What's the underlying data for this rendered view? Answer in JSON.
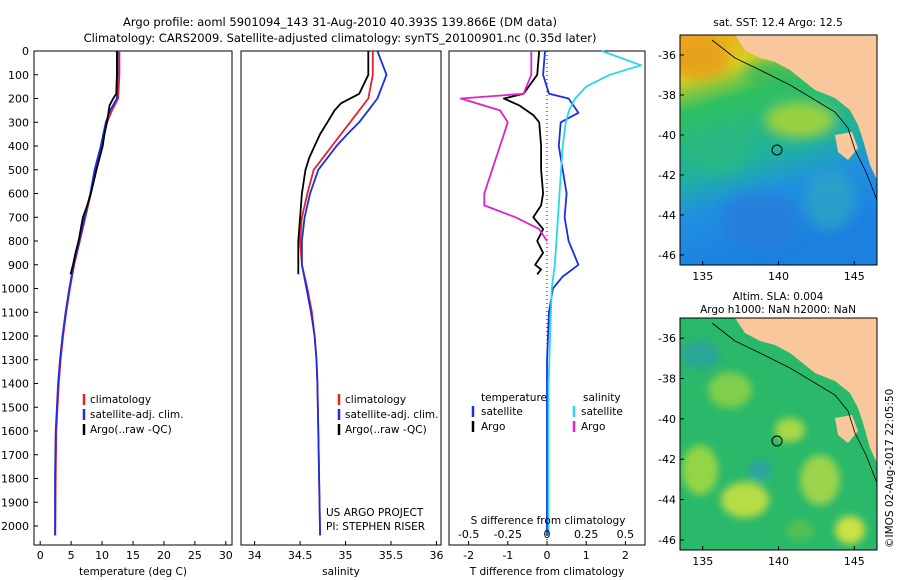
{
  "header": {
    "title1": "Argo profile: aoml 5901094_143 31-Aug-2010 40.393S 139.866E (DM data)",
    "title2": "Climatology: CARS2009. Satellite-adjusted climatology: synTS_20100901.nc (0.35d later)"
  },
  "footer": {
    "imos_stamp": "©IMOS 02-Aug-2017 22:05:50"
  },
  "colors": {
    "climatology": "#e8202a",
    "satellite": "#1c2fe0",
    "argo": "#000000",
    "sat_salinity": "#26d8e8",
    "argo_salinity": "#e020c8",
    "land": "#f8c89c"
  },
  "chart_data": [
    {
      "type": "line",
      "panel": "temperature",
      "xlabel": "temperature (deg C)",
      "ylabel": "",
      "xlim": [
        -1,
        31
      ],
      "ylim": [
        2080,
        0
      ],
      "xticks": [
        0,
        5,
        10,
        15,
        20,
        25,
        30
      ],
      "yticks": [
        0,
        100,
        200,
        300,
        400,
        500,
        600,
        700,
        800,
        900,
        1000,
        1100,
        1200,
        1300,
        1400,
        1500,
        1600,
        1700,
        1800,
        1900,
        2000
      ],
      "legend": [
        "climatology",
        "satellite-adj. clim.",
        "Argo(..raw -QC)"
      ],
      "series": [
        {
          "name": "climatology",
          "x": [
            12.8,
            12.8,
            12.6,
            11.6,
            10.8,
            10.3,
            9.9,
            9.4,
            8.9,
            8.2,
            7.3,
            6.4,
            5.5,
            4.8,
            4.2,
            3.7,
            3.3,
            3.0,
            2.8,
            2.6,
            2.5,
            2.45
          ],
          "y": [
            0,
            100,
            200,
            250,
            300,
            350,
            400,
            450,
            500,
            600,
            700,
            800,
            900,
            1000,
            1100,
            1200,
            1300,
            1400,
            1500,
            1600,
            1800,
            2040
          ]
        },
        {
          "name": "satellite-adj. clim.",
          "x": [
            12.5,
            12.5,
            12.4,
            11.3,
            10.6,
            10.2,
            9.8,
            9.3,
            8.8,
            8.1,
            7.2,
            6.3,
            5.4,
            4.7,
            4.1,
            3.6,
            3.2,
            2.9,
            2.7,
            2.5,
            2.4,
            2.4
          ],
          "y": [
            0,
            100,
            200,
            250,
            300,
            350,
            400,
            450,
            500,
            600,
            700,
            800,
            900,
            1000,
            1100,
            1200,
            1300,
            1400,
            1500,
            1600,
            1800,
            2040
          ]
        },
        {
          "name": "Argo(..raw -QC)",
          "x": [
            12.4,
            12.4,
            12.3,
            11.8,
            11.2,
            10.8,
            10.4,
            10.1,
            9.6,
            9.1,
            8.2,
            7.6,
            6.9,
            6.2,
            5.7,
            5.3,
            4.9
          ],
          "y": [
            0,
            100,
            180,
            200,
            230,
            300,
            350,
            400,
            450,
            500,
            600,
            650,
            700,
            800,
            850,
            900,
            940
          ]
        }
      ]
    },
    {
      "type": "line",
      "panel": "salinity",
      "xlabel": "salinity",
      "ylabel": "",
      "xlim": [
        33.85,
        36.05
      ],
      "ylim": [
        2080,
        0
      ],
      "xticks": [
        34,
        34.5,
        35,
        35.5,
        36
      ],
      "legend": [
        "climatology",
        "satellite-adj. clim.",
        "Argo(..raw -QC)"
      ],
      "annotations": [
        "US ARGO PROJECT",
        "PI: STEPHEN RISER"
      ],
      "series": [
        {
          "name": "climatology",
          "x": [
            35.3,
            35.3,
            35.25,
            35.15,
            35.05,
            34.95,
            34.85,
            34.75,
            34.65,
            34.58,
            34.52,
            34.5,
            34.52,
            34.58,
            34.63,
            34.66,
            34.68,
            34.69,
            34.7,
            34.72
          ],
          "y": [
            0,
            100,
            200,
            250,
            300,
            350,
            400,
            450,
            500,
            600,
            700,
            800,
            900,
            1000,
            1100,
            1200,
            1300,
            1400,
            1600,
            2040
          ]
        },
        {
          "name": "satellite-adj. clim.",
          "x": [
            35.35,
            35.45,
            35.35,
            35.25,
            35.15,
            35.02,
            34.9,
            34.8,
            34.7,
            34.61,
            34.55,
            34.52,
            34.52,
            34.57,
            34.62,
            34.66,
            34.68,
            34.69,
            34.7,
            34.72
          ],
          "y": [
            0,
            100,
            200,
            250,
            300,
            350,
            400,
            450,
            500,
            600,
            700,
            800,
            900,
            1000,
            1100,
            1200,
            1300,
            1400,
            1600,
            2040
          ]
        },
        {
          "name": "Argo(..raw -QC)",
          "x": [
            35.25,
            35.25,
            35.15,
            34.95,
            34.88,
            34.8,
            34.72,
            34.66,
            34.6,
            34.56,
            34.52,
            34.5,
            34.48,
            34.48
          ],
          "y": [
            0,
            100,
            180,
            220,
            250,
            300,
            350,
            400,
            450,
            500,
            600,
            700,
            800,
            940
          ]
        }
      ]
    },
    {
      "type": "line",
      "panel": "difference",
      "xlabel": "T difference from climatology",
      "xlabel_top": "S difference from climatology",
      "xlim": [
        -2.5,
        2.5
      ],
      "ylim": [
        2080,
        0
      ],
      "xticks_bottom": [
        -2,
        -1,
        0,
        1,
        2
      ],
      "xticks_top": [
        "-0.5",
        "-0.25",
        "0",
        "0.25",
        "0.5"
      ],
      "legend": {
        "temperature": [
          "satellite",
          "Argo"
        ],
        "salinity": [
          "satellite",
          "Argo"
        ]
      },
      "series": [
        {
          "name": "temperature satellite",
          "x": [
            -0.05,
            -0.1,
            0.05,
            0.55,
            0.8,
            0.35,
            0.3,
            0.4,
            0.5,
            0.45,
            0.5,
            0.55,
            0.8,
            0.4,
            0.15,
            0.05,
            0.0,
            0.0,
            0.0
          ],
          "y": [
            0,
            100,
            180,
            200,
            260,
            300,
            400,
            500,
            600,
            700,
            750,
            800,
            900,
            950,
            1000,
            1100,
            1300,
            1600,
            2040
          ]
        },
        {
          "name": "temperature Argo",
          "x": [
            -0.2,
            -0.25,
            -0.6,
            -1.1,
            -0.7,
            -0.35,
            -0.2,
            -0.15,
            -0.15,
            -0.1,
            -0.15,
            -0.35,
            -0.1,
            -0.25,
            -0.1,
            -0.3,
            -0.15,
            -0.25
          ],
          "y": [
            0,
            100,
            180,
            200,
            230,
            270,
            300,
            400,
            500,
            600,
            650,
            700,
            750,
            800,
            850,
            900,
            920,
            940
          ]
        },
        {
          "name": "salinity satellite",
          "x": [
            0.35,
            0.6,
            0.4,
            0.25,
            0.18,
            0.14,
            0.12,
            0.1,
            0.09,
            0.08,
            0.07,
            0.06,
            0.05,
            0.03,
            0.02,
            0.01,
            0.01,
            0.01
          ],
          "y": [
            0,
            60,
            100,
            150,
            200,
            250,
            300,
            400,
            500,
            600,
            700,
            800,
            900,
            1000,
            1200,
            1400,
            1700,
            2040
          ]
        },
        {
          "name": "salinity Argo",
          "x": [
            -0.1,
            -0.1,
            -0.15,
            -0.55,
            -0.3,
            -0.25,
            -0.3,
            -0.35,
            -0.4,
            -0.4,
            -0.2,
            -0.05,
            0.0
          ],
          "y": [
            0,
            100,
            180,
            200,
            250,
            300,
            400,
            500,
            600,
            650,
            700,
            750,
            800
          ]
        }
      ]
    }
  ],
  "maps": [
    {
      "title": "sat. SST: 12.4  Argo: 12.5",
      "xticks": [
        "135",
        "140",
        "145"
      ],
      "yticks": [
        "-36",
        "-38",
        "-40",
        "-42",
        "-44",
        "-46"
      ],
      "xlim": [
        133.5,
        146.5
      ],
      "ylim": [
        -46.5,
        -35
      ],
      "marker": {
        "lon": 139.87,
        "lat": -40.39
      }
    },
    {
      "title_line1": "Altim. SLA: 0.004",
      "title_line2": "Argo h1000: NaN h2000: NaN",
      "xticks": [
        "135",
        "140",
        "145"
      ],
      "yticks": [
        "-36",
        "-38",
        "-40",
        "-42",
        "-44",
        "-46"
      ],
      "xlim": [
        133.5,
        146.5
      ],
      "ylim": [
        -46.5,
        -35
      ],
      "marker": {
        "lon": 139.87,
        "lat": -40.39
      }
    }
  ]
}
